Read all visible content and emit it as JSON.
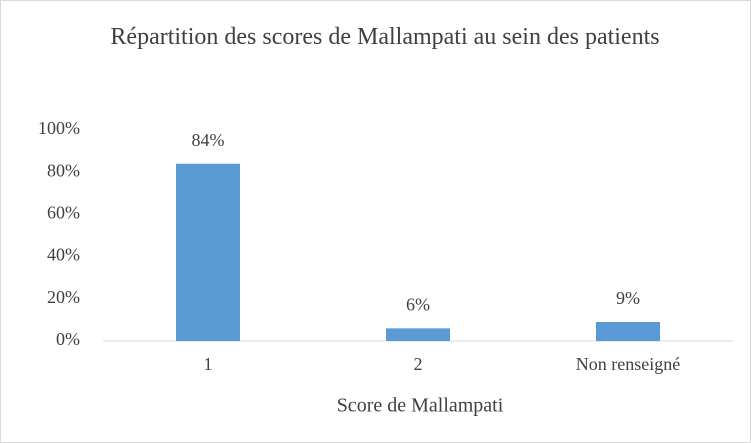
{
  "chart_data": {
    "type": "bar",
    "title": "Répartition des scores de Mallampati au sein des patients",
    "x_label": "Score de Mallampati",
    "categories": [
      "1",
      "2",
      "Non renseigné"
    ],
    "values": [
      84,
      6,
      9
    ],
    "value_labels": [
      "84%",
      "6%",
      "9%"
    ],
    "color": "#5b9bd5",
    "ylim": [
      0,
      100
    ],
    "yticks": [
      {
        "value": 0,
        "label": "0%"
      },
      {
        "value": 20,
        "label": "20%"
      },
      {
        "value": 40,
        "label": "40%"
      },
      {
        "value": 60,
        "label": "60%"
      },
      {
        "value": 80,
        "label": "80%"
      },
      {
        "value": 100,
        "label": "100%"
      }
    ],
    "grid": false
  }
}
